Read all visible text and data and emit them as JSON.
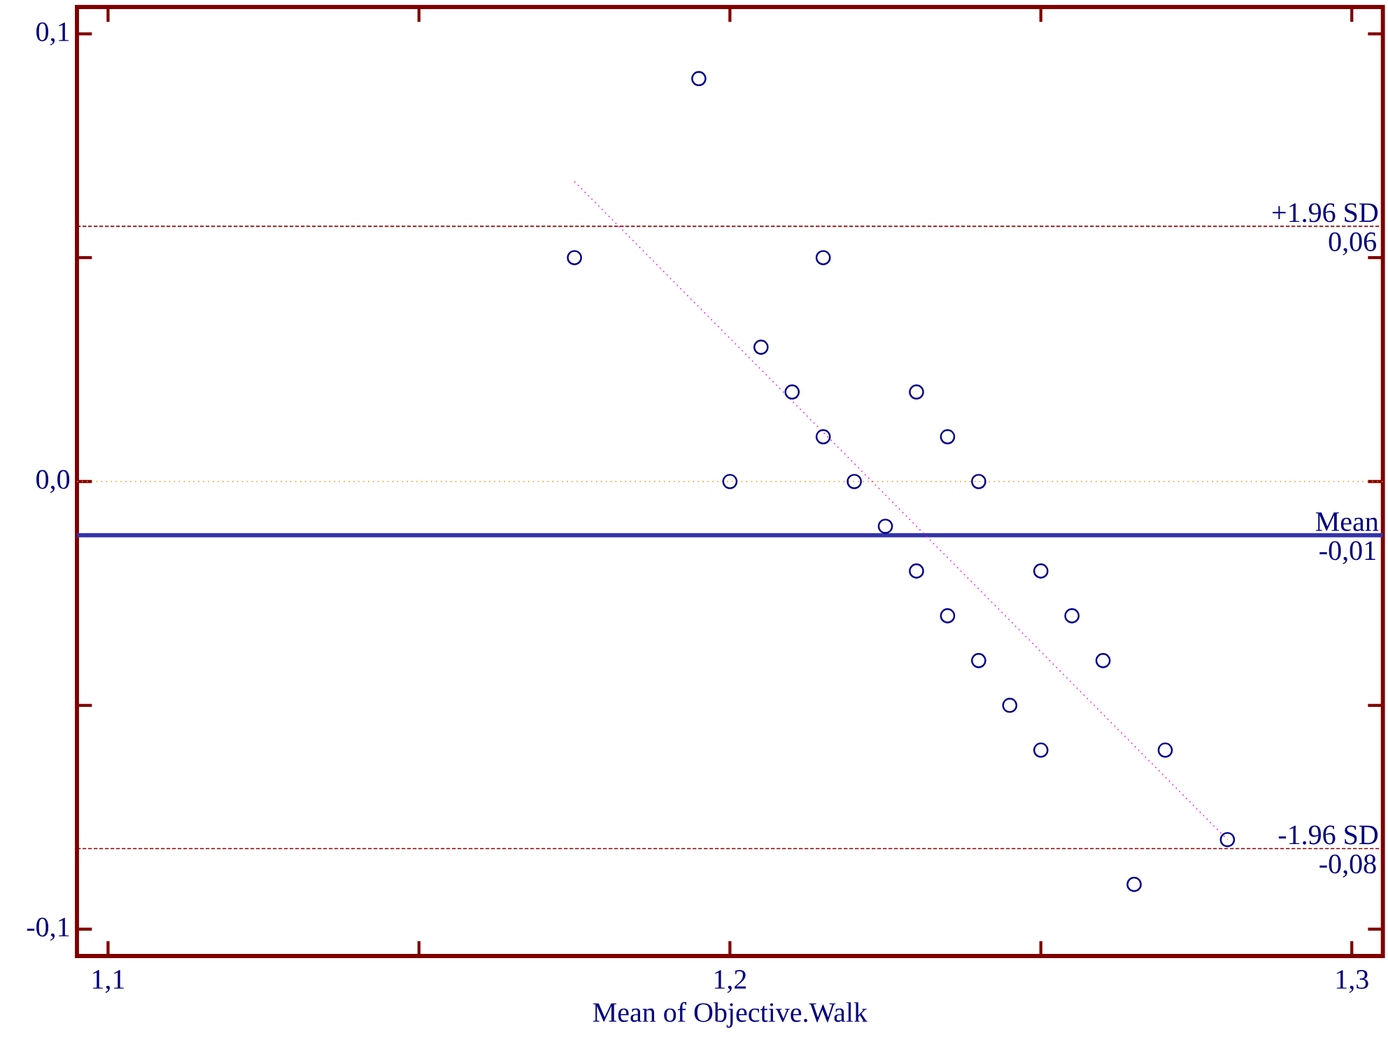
{
  "chart_data": {
    "type": "scatter",
    "xlabel": "Mean of Objective.Walk",
    "xlim": [
      1.095,
      1.305
    ],
    "ylim": [
      -0.106,
      0.106
    ],
    "xticks": [
      {
        "value": 1.1,
        "label": "1,1"
      },
      {
        "value": 1.15,
        "label": null
      },
      {
        "value": 1.2,
        "label": "1,2"
      },
      {
        "value": 1.25,
        "label": null
      },
      {
        "value": 1.3,
        "label": "1,3"
      }
    ],
    "yticks": [
      {
        "value": -0.1,
        "label": "-0,1"
      },
      {
        "value": -0.05,
        "label": null
      },
      {
        "value": 0.0,
        "label": "0,0"
      },
      {
        "value": 0.05,
        "label": null
      },
      {
        "value": 0.1,
        "label": "0,1"
      }
    ],
    "marker": "circle",
    "series": [
      {
        "color": "#00008b",
        "x": [
          1.175,
          1.195,
          1.215,
          1.205,
          1.21,
          1.215,
          1.2,
          1.22,
          1.23,
          1.235,
          1.24,
          1.225,
          1.23,
          1.25,
          1.235,
          1.255,
          1.24,
          1.26,
          1.245,
          1.25,
          1.27,
          1.28,
          1.265
        ],
        "values": [
          0.05,
          0.09,
          0.05,
          0.03,
          0.02,
          0.01,
          0.0,
          0.0,
          0.02,
          0.01,
          0.0,
          -0.01,
          -0.02,
          -0.02,
          -0.03,
          -0.03,
          -0.04,
          -0.04,
          -0.05,
          -0.06,
          -0.06,
          -0.08,
          -0.09
        ]
      },
      {
        "type": "line",
        "color": "#ff00ff",
        "line_style": "dotted",
        "marker": "none",
        "x": [
          1.175,
          1.28
        ],
        "values": [
          0.067,
          -0.08
        ]
      }
    ],
    "ref_lines": [
      {
        "axis": "y",
        "value": 0.0,
        "color": "#ff8c00",
        "line_style": "dotted"
      },
      {
        "axis": "y",
        "value": 0.057,
        "label": "+1.96 SD",
        "color": "#8b0000",
        "line_style": "dashed"
      },
      {
        "axis": "y",
        "value": -0.012,
        "label": "Mean",
        "color": "#3333aa",
        "line_style": "solid"
      },
      {
        "axis": "y",
        "value": -0.082,
        "label": "-1.96 SD",
        "color": "#8b0000",
        "line_style": "dashed"
      }
    ],
    "annotations": [
      {
        "text": "0,06",
        "y": 0.057
      },
      {
        "text": "-0,01",
        "y": -0.012
      },
      {
        "text": "-0,08",
        "y": -0.082
      }
    ]
  }
}
